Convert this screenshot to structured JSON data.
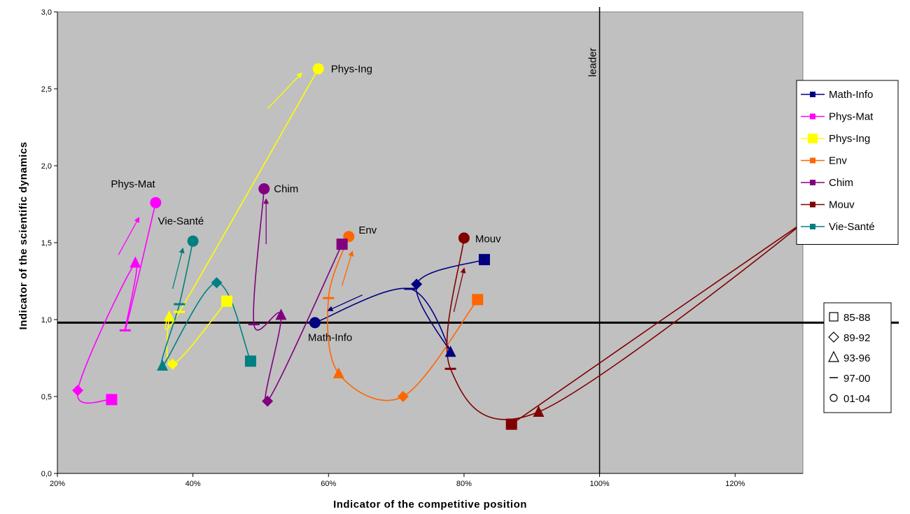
{
  "chart_data": {
    "type": "scatter",
    "title": "",
    "xlabel": "Indicator of the competitive position",
    "ylabel": "Indicator of the scientific dynamics",
    "xlim": [
      0.2,
      1.3
    ],
    "ylim": [
      0,
      3
    ],
    "x_ticks": [
      0.2,
      0.4,
      0.6,
      0.8,
      1.0,
      1.2
    ],
    "x_tick_labels": [
      "20%",
      "40%",
      "60%",
      "80%",
      "100%",
      "120%"
    ],
    "y_ticks": [
      0,
      0.5,
      1,
      1.5,
      2,
      2.5,
      3
    ],
    "y_tick_labels": [
      "0,0",
      "0,5",
      "1,0",
      "1,5",
      "2,0",
      "2,5",
      "3,0"
    ],
    "grid": false,
    "background_color": "#c0c0c0",
    "reference_lines": [
      {
        "orientation": "vertical",
        "value": 1.0,
        "label": "leader"
      },
      {
        "orientation": "horizontal",
        "value": 0.98,
        "label": ""
      }
    ],
    "periods": [
      "85-88",
      "89-92",
      "93-96",
      "97-00",
      "01-04"
    ],
    "period_markers": [
      "square",
      "diamond",
      "triangle",
      "dash",
      "circle"
    ],
    "legend_position": "right",
    "series": [
      {
        "name": "Math-Info",
        "color": "#000080",
        "label": "Math-Info",
        "points": [
          [
            0.83,
            1.39
          ],
          [
            0.73,
            1.23
          ],
          [
            0.78,
            0.79
          ],
          [
            0.72,
            1.2
          ],
          [
            0.58,
            0.98
          ]
        ],
        "arrow": [
          [
            0.65,
            1.16
          ],
          [
            0.6,
            1.06
          ]
        ]
      },
      {
        "name": "Phys-Mat",
        "color": "#ff00ff",
        "label": "Phys-Mat",
        "points": [
          [
            0.28,
            0.48
          ],
          [
            0.23,
            0.54
          ],
          [
            0.315,
            1.37
          ],
          [
            0.3,
            0.93
          ],
          [
            0.345,
            1.76
          ]
        ],
        "arrow": [
          [
            0.29,
            1.42
          ],
          [
            0.32,
            1.66
          ]
        ]
      },
      {
        "name": "Phys-Ing",
        "color": "#ffff00",
        "label": "Phys-Ing",
        "points": [
          [
            0.45,
            1.12
          ],
          [
            0.37,
            0.71
          ],
          [
            0.365,
            1.02
          ],
          [
            0.38,
            1.05
          ],
          [
            0.585,
            2.63
          ]
        ],
        "arrow": [
          [
            0.51,
            2.37
          ],
          [
            0.56,
            2.6
          ]
        ]
      },
      {
        "name": "Env",
        "color": "#ff6600",
        "label": "Env",
        "points": [
          [
            0.82,
            1.13
          ],
          [
            0.71,
            0.5
          ],
          [
            0.615,
            0.65
          ],
          [
            0.6,
            1.14
          ],
          [
            0.63,
            1.54
          ]
        ],
        "arrow": [
          [
            0.62,
            1.22
          ],
          [
            0.635,
            1.44
          ]
        ]
      },
      {
        "name": "Chim",
        "color": "#800080",
        "label": "Chim",
        "points": [
          [
            0.62,
            1.49
          ],
          [
            0.51,
            0.47
          ],
          [
            0.53,
            1.03
          ],
          [
            0.49,
            0.97
          ],
          [
            0.505,
            1.85
          ]
        ],
        "arrow": [
          [
            0.508,
            1.49
          ],
          [
            0.508,
            1.78
          ]
        ]
      },
      {
        "name": "Mouv",
        "color": "#800000",
        "label": "Mouv",
        "points": [
          [
            0.87,
            0.32
          ],
          [
            1.3,
            1.63
          ],
          [
            0.91,
            0.4
          ],
          [
            0.78,
            0.68
          ],
          [
            0.8,
            1.53
          ]
        ],
        "arrow": [
          [
            0.785,
            1.05
          ],
          [
            0.8,
            1.33
          ]
        ]
      },
      {
        "name": "Vie-Santé",
        "color": "#008080",
        "label": "Vie-Santé",
        "points": [
          [
            0.485,
            0.73
          ],
          [
            0.435,
            1.24
          ],
          [
            0.355,
            0.7
          ],
          [
            0.38,
            1.1
          ],
          [
            0.4,
            1.51
          ]
        ],
        "arrow": [
          [
            0.37,
            1.2
          ],
          [
            0.385,
            1.46
          ]
        ]
      }
    ]
  }
}
